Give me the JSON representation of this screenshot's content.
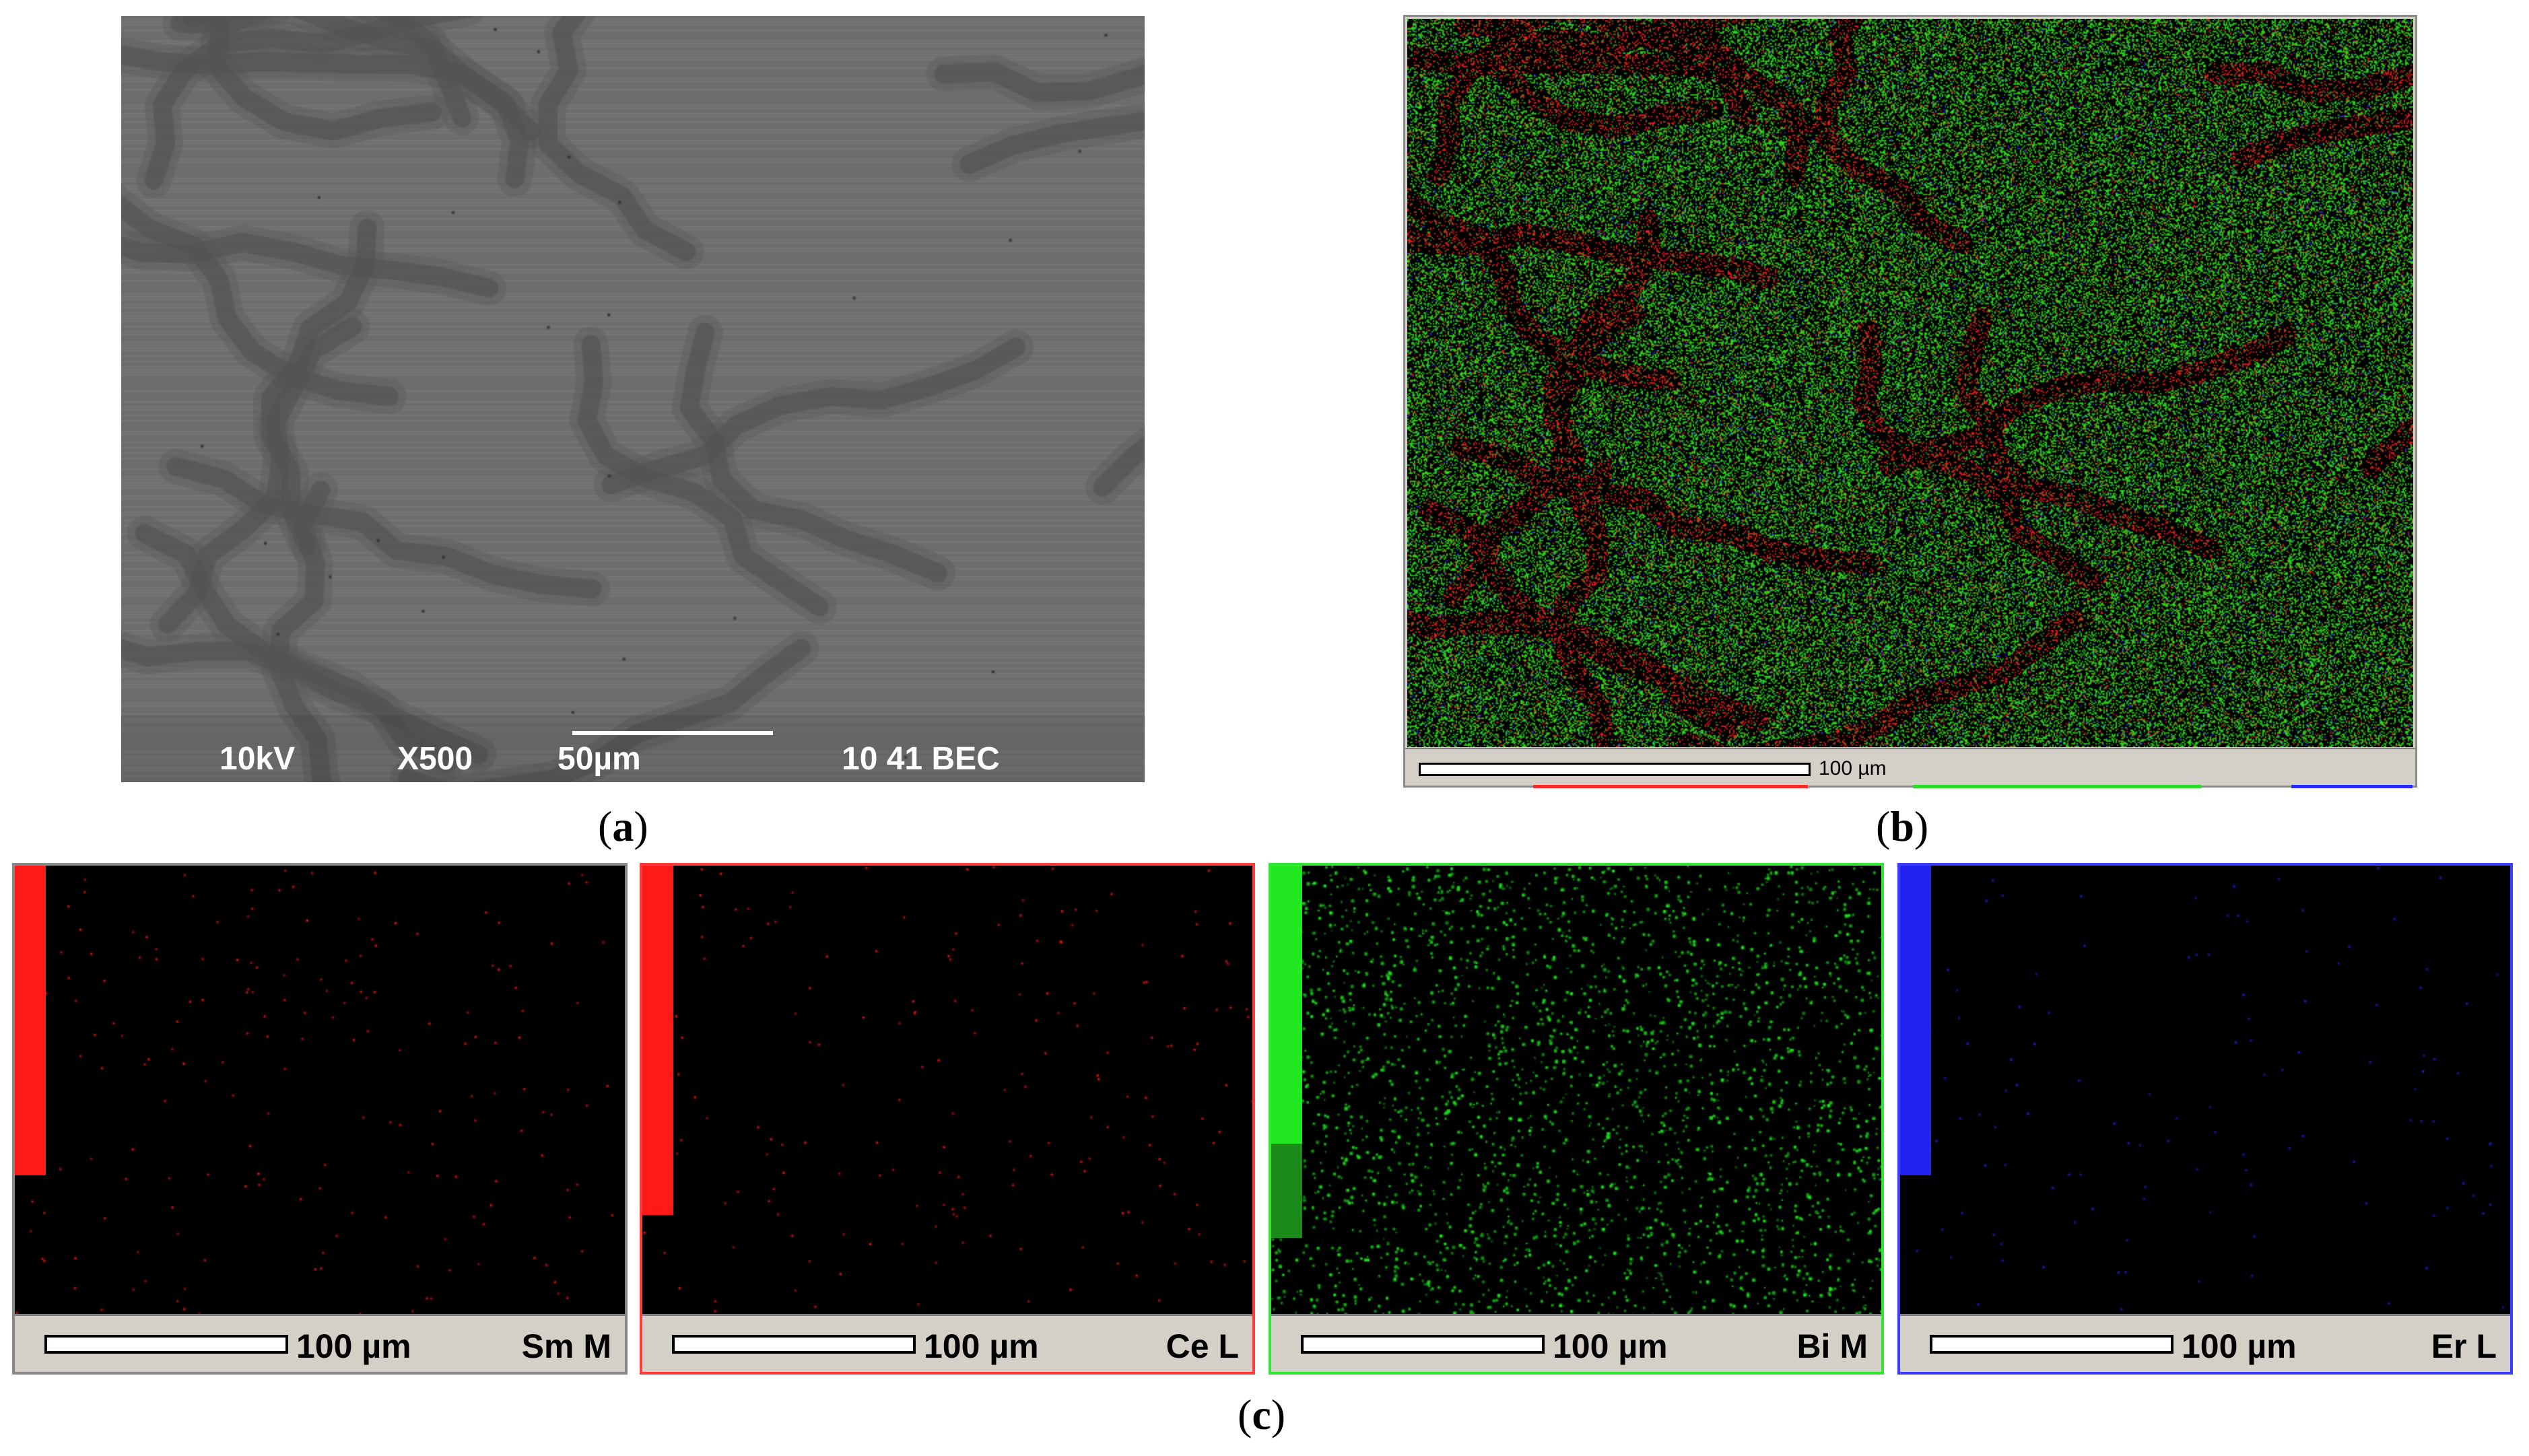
{
  "panel_a": {
    "caption": "a",
    "labels": [
      "10kV",
      "X500",
      "50µm",
      "10 41 BEC"
    ]
  },
  "panel_b": {
    "caption": "b",
    "scale_label": "100 µm",
    "underline_colors": [
      "#ff2a2a",
      "#2adc2a",
      "#2a2aff"
    ]
  },
  "panel_c": {
    "caption": "c",
    "maps": [
      {
        "element": "Sm M",
        "scale_label": "100 µm",
        "color": "#ff1a1a",
        "border": "#888888",
        "bar_fill": 0.69,
        "dot_density": 0.0012
      },
      {
        "element": "Ce L",
        "scale_label": "100 µm",
        "color": "#ff1a1a",
        "border": "#ff3b3b",
        "bar_fill": 0.78,
        "dot_density": 0.0013
      },
      {
        "element": "Bi M",
        "scale_label": "100 µm",
        "color": "#22e822",
        "border": "#35e535",
        "bar_fill": 0.62,
        "bar_dark_fill": 0.21,
        "dot_density": 0.018
      },
      {
        "element": "Er L",
        "scale_label": "100 µm",
        "color": "#2222ee",
        "border": "#3c3cff",
        "bar_fill": 0.69,
        "dot_density": 0.0008
      }
    ]
  }
}
